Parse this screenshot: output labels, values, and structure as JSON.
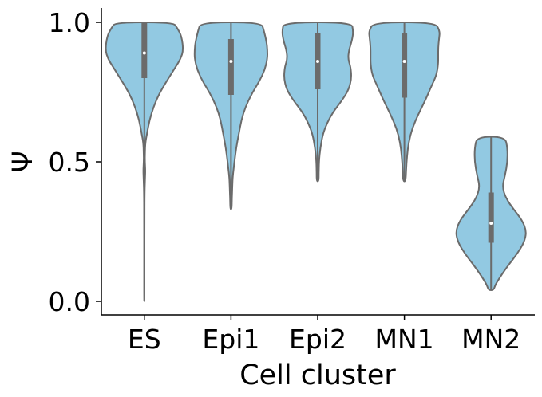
{
  "chart_data": {
    "type": "violin",
    "xlabel": "Cell cluster",
    "ylabel": "Ψ",
    "ylim": [
      -0.05,
      1.05
    ],
    "yticks": [
      {
        "value": 0.0,
        "label": "0.0"
      },
      {
        "value": 0.5,
        "label": "0.5"
      },
      {
        "value": 1.0,
        "label": "1.0"
      }
    ],
    "grid": false,
    "legend": "none",
    "colors": {
      "fill": "#92c9e2",
      "stroke": "#6b6b6b",
      "box": "#6b6b6b",
      "median": "#ffffff"
    },
    "categories": [
      "ES",
      "Epi1",
      "Epi2",
      "MN1",
      "MN2"
    ],
    "violins": [
      {
        "category": "ES",
        "min": 0.0,
        "max": 1.0,
        "median": 0.89,
        "q1": 0.8,
        "q3": 1.0,
        "profile": [
          [
            1.0,
            0.33
          ],
          [
            0.98,
            0.38
          ],
          [
            0.95,
            0.43
          ],
          [
            0.9,
            0.45
          ],
          [
            0.87,
            0.42
          ],
          [
            0.84,
            0.36
          ],
          [
            0.8,
            0.28
          ],
          [
            0.75,
            0.18
          ],
          [
            0.7,
            0.11
          ],
          [
            0.65,
            0.06
          ],
          [
            0.6,
            0.03
          ],
          [
            0.57,
            0.012
          ],
          [
            0.53,
            0.007
          ],
          [
            0.5,
            0.006
          ],
          [
            0.47,
            0.012
          ],
          [
            0.44,
            0.008
          ],
          [
            0.4,
            0.004
          ],
          [
            0.3,
            0.002
          ],
          [
            0.15,
            0.002
          ],
          [
            0.0,
            0.002
          ]
        ]
      },
      {
        "category": "Epi1",
        "min": 0.33,
        "max": 1.0,
        "median": 0.86,
        "q1": 0.74,
        "q3": 0.94,
        "profile": [
          [
            1.0,
            0.35
          ],
          [
            0.97,
            0.38
          ],
          [
            0.93,
            0.41
          ],
          [
            0.9,
            0.42
          ],
          [
            0.87,
            0.42
          ],
          [
            0.83,
            0.39
          ],
          [
            0.79,
            0.33
          ],
          [
            0.75,
            0.25
          ],
          [
            0.7,
            0.17
          ],
          [
            0.65,
            0.12
          ],
          [
            0.6,
            0.09
          ],
          [
            0.55,
            0.06
          ],
          [
            0.5,
            0.04
          ],
          [
            0.45,
            0.02
          ],
          [
            0.41,
            0.015
          ],
          [
            0.37,
            0.01
          ],
          [
            0.33,
            0.008
          ]
        ]
      },
      {
        "category": "Epi2",
        "min": 0.43,
        "max": 1.0,
        "median": 0.86,
        "q1": 0.76,
        "q3": 0.96,
        "profile": [
          [
            1.0,
            0.39
          ],
          [
            0.97,
            0.41
          ],
          [
            0.94,
            0.4
          ],
          [
            0.9,
            0.36
          ],
          [
            0.87,
            0.35
          ],
          [
            0.84,
            0.38
          ],
          [
            0.8,
            0.39
          ],
          [
            0.76,
            0.36
          ],
          [
            0.72,
            0.28
          ],
          [
            0.68,
            0.18
          ],
          [
            0.64,
            0.11
          ],
          [
            0.6,
            0.06
          ],
          [
            0.55,
            0.03
          ],
          [
            0.5,
            0.015
          ],
          [
            0.46,
            0.012
          ],
          [
            0.43,
            0.012
          ]
        ]
      },
      {
        "category": "MN1",
        "min": 0.43,
        "max": 1.0,
        "median": 0.86,
        "q1": 0.73,
        "q3": 0.96,
        "profile": [
          [
            1.0,
            0.35
          ],
          [
            0.97,
            0.41
          ],
          [
            0.94,
            0.4
          ],
          [
            0.91,
            0.39
          ],
          [
            0.88,
            0.39
          ],
          [
            0.85,
            0.39
          ],
          [
            0.81,
            0.37
          ],
          [
            0.77,
            0.31
          ],
          [
            0.72,
            0.24
          ],
          [
            0.67,
            0.16
          ],
          [
            0.62,
            0.09
          ],
          [
            0.57,
            0.05
          ],
          [
            0.52,
            0.03
          ],
          [
            0.47,
            0.02
          ],
          [
            0.43,
            0.015
          ]
        ]
      },
      {
        "category": "MN2",
        "min": 0.04,
        "max": 0.59,
        "median": 0.28,
        "q1": 0.21,
        "q3": 0.39,
        "profile": [
          [
            0.59,
            0.16
          ],
          [
            0.55,
            0.19
          ],
          [
            0.5,
            0.19
          ],
          [
            0.45,
            0.16
          ],
          [
            0.41,
            0.13
          ],
          [
            0.37,
            0.17
          ],
          [
            0.33,
            0.26
          ],
          [
            0.29,
            0.36
          ],
          [
            0.25,
            0.41
          ],
          [
            0.21,
            0.38
          ],
          [
            0.17,
            0.3
          ],
          [
            0.13,
            0.2
          ],
          [
            0.09,
            0.11
          ],
          [
            0.06,
            0.05
          ],
          [
            0.04,
            0.03
          ]
        ]
      }
    ]
  }
}
